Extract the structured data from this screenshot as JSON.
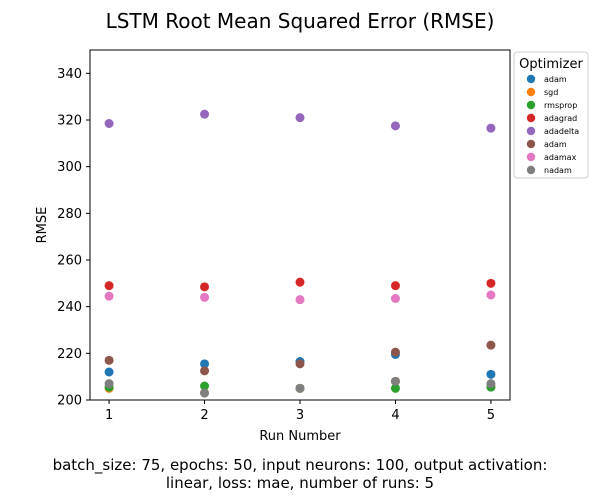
{
  "chart_data": {
    "type": "scatter",
    "title": "LSTM Root Mean Squared Error (RMSE)",
    "xlabel": "Run Number",
    "ylabel": "RMSE",
    "x": [
      1,
      2,
      3,
      4,
      5
    ],
    "xticks": [
      "1",
      "2",
      "3",
      "4",
      "5"
    ],
    "xlim": [
      0.8,
      5.2
    ],
    "ylim": [
      200,
      350
    ],
    "yticks": [
      200,
      220,
      240,
      260,
      280,
      300,
      320,
      340
    ],
    "grid": false,
    "legend": {
      "title": "Optimizer",
      "placement": "outside-right-top"
    },
    "series": [
      {
        "name": "adam",
        "color": "#1f77b4",
        "values": [
          212,
          215.5,
          216.5,
          219.5,
          211
        ]
      },
      {
        "name": "sgd",
        "color": "#ff7f0e",
        "values": [
          205,
          203,
          205,
          208,
          206
        ]
      },
      {
        "name": "rmsprop",
        "color": "#2ca02c",
        "values": [
          205.5,
          206,
          205,
          205,
          205.5
        ]
      },
      {
        "name": "adagrad",
        "color": "#d62728",
        "values": [
          249,
          248.5,
          250.5,
          249,
          250
        ]
      },
      {
        "name": "adadelta",
        "color": "#9467bd",
        "values": [
          318.5,
          322.5,
          321,
          317.5,
          316.5
        ]
      },
      {
        "name": "adam",
        "color": "#8c564b",
        "values": [
          217,
          212.5,
          215.5,
          220.5,
          223.5
        ]
      },
      {
        "name": "adamax",
        "color": "#e377c2",
        "values": [
          244.5,
          244,
          243,
          243.5,
          245
        ]
      },
      {
        "name": "nadam",
        "color": "#7f7f7f",
        "values": [
          207,
          203,
          205,
          208,
          207
        ]
      }
    ]
  },
  "caption": {
    "line1": "batch_size: 75, epochs: 50, input neurons: 100, output activation:",
    "line2": "linear, loss: mae, number of runs: 5"
  }
}
